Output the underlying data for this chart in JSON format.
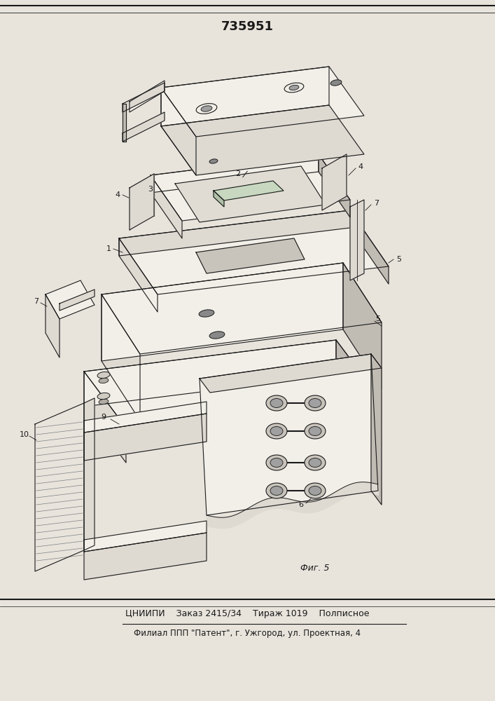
{
  "title": "735951",
  "fig_label": "Фиг. 5",
  "footer_line1": "ЦНИИПИ    Заказ 2415/34    Тираж 1019    Полписное",
  "footer_line2": "Филиал ППП \"Патент\", г. Ужгород, ул. Проектная, 4",
  "bg_color": "#e8e4dc",
  "line_color": "#1a1a1a",
  "fill_light": "#f0ece4",
  "fill_mid": "#d8d4cc",
  "fill_dark": "#b0aca4"
}
